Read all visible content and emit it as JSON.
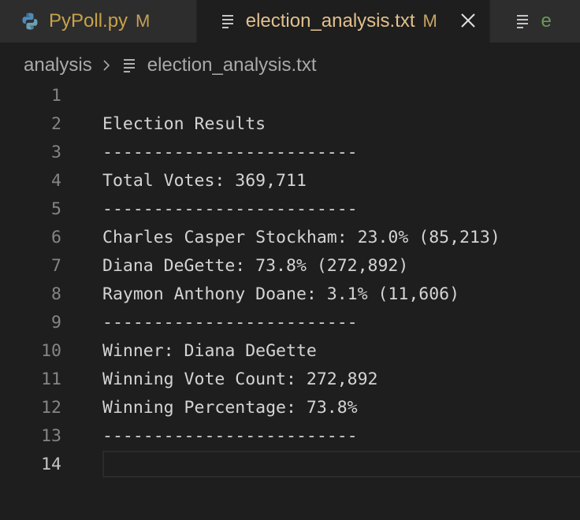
{
  "tabs": [
    {
      "name": "PyPoll.py",
      "status": "M",
      "icon": "python-icon",
      "active": false
    },
    {
      "name": "election_analysis.txt",
      "status": "M",
      "icon": "lines-icon",
      "active": true
    },
    {
      "name": "e",
      "icon": "lines-icon",
      "active": false
    }
  ],
  "breadcrumb": {
    "folder": "analysis",
    "file": "election_analysis.txt"
  },
  "editor": {
    "lines": [
      {
        "num": "1",
        "text": ""
      },
      {
        "num": "2",
        "text": "Election Results"
      },
      {
        "num": "3",
        "text": "-------------------------"
      },
      {
        "num": "4",
        "text": "Total Votes: 369,711"
      },
      {
        "num": "5",
        "text": "-------------------------"
      },
      {
        "num": "6",
        "text": "Charles Casper Stockham: 23.0% (85,213)"
      },
      {
        "num": "7",
        "text": "Diana DeGette: 73.8% (272,892)"
      },
      {
        "num": "8",
        "text": "Raymon Anthony Doane: 3.1% (11,606)"
      },
      {
        "num": "9",
        "text": "-------------------------"
      },
      {
        "num": "10",
        "text": "Winner: Diana DeGette"
      },
      {
        "num": "11",
        "text": "Winning Vote Count: 272,892"
      },
      {
        "num": "12",
        "text": "Winning Percentage: 73.8%"
      },
      {
        "num": "13",
        "text": "-------------------------"
      },
      {
        "num": "14",
        "text": ""
      }
    ],
    "current_line": "14"
  },
  "colors": {
    "background": "#1e1e1e",
    "tabbar": "#252526",
    "modified_text": "#e2c08d",
    "code_text": "#d4d4d4",
    "line_number": "#858585"
  }
}
